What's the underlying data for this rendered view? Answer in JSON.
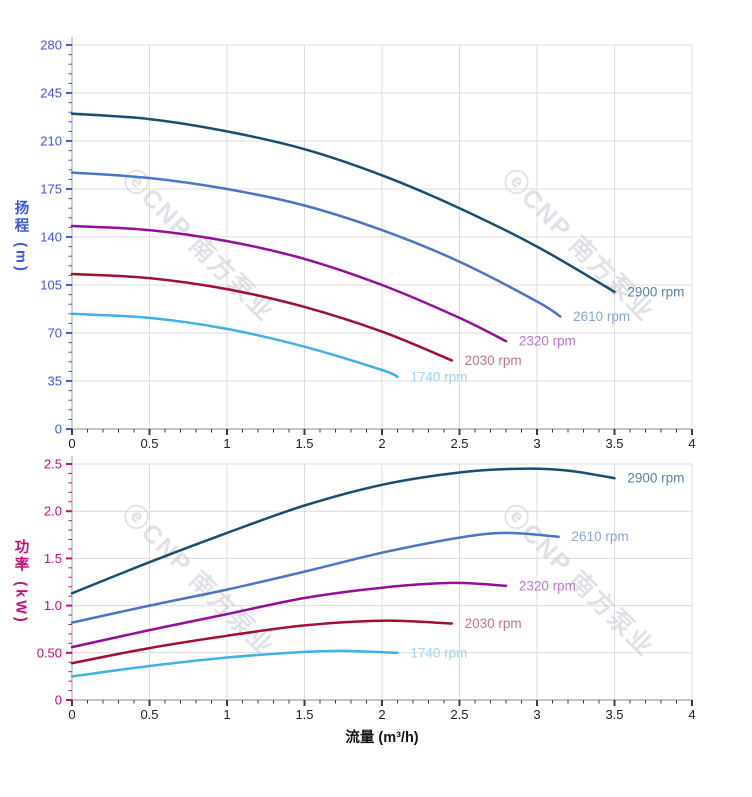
{
  "watermark": {
    "logo_glyph": "ⓔ",
    "text": "CNP 南方泵业",
    "color": "#b9bdc9"
  },
  "chart_data": [
    {
      "type": "line",
      "title": "",
      "xlabel": "",
      "ylabel": "扬程 (m)",
      "xlim": [
        0,
        4
      ],
      "ylim": [
        0,
        280
      ],
      "x_major": 0.5,
      "x_minor": 0.1,
      "y_major": 35,
      "y_minor": 7,
      "grid": true,
      "legend_position": "end-of-curve",
      "axis_color": "#3d56db",
      "x_tick_labels": [
        "0",
        "0.5",
        "1",
        "1.5",
        "2",
        "2.5",
        "3",
        "3.5",
        "4"
      ],
      "y_tick_labels": [
        "0",
        "35",
        "70",
        "105",
        "140",
        "175",
        "210",
        "245",
        "280"
      ],
      "series": [
        {
          "name": "2900 rpm",
          "color": "#174e74",
          "label_color": "#5c80a8",
          "label_at": [
            3.57,
            100
          ],
          "points": [
            [
              0,
              230
            ],
            [
              0.5,
              226
            ],
            [
              1,
              217
            ],
            [
              1.5,
              204
            ],
            [
              2,
              185
            ],
            [
              2.5,
              161
            ],
            [
              3,
              133
            ],
            [
              3.5,
              100
            ]
          ]
        },
        {
          "name": "2610 rpm",
          "color": "#4a76c8",
          "label_color": "#8aa5d8",
          "label_at": [
            3.22,
            82
          ],
          "points": [
            [
              0,
              187
            ],
            [
              0.5,
              183
            ],
            [
              1,
              175
            ],
            [
              1.5,
              163
            ],
            [
              2,
              145
            ],
            [
              2.5,
              122
            ],
            [
              3,
              93
            ],
            [
              3.15,
              82
            ]
          ]
        },
        {
          "name": "2320 rpm",
          "color": "#950d9b",
          "label_color": "#b878c8",
          "label_at": [
            2.87,
            64
          ],
          "points": [
            [
              0,
              148
            ],
            [
              0.5,
              145
            ],
            [
              1,
              137
            ],
            [
              1.5,
              124
            ],
            [
              2,
              105
            ],
            [
              2.5,
              81
            ],
            [
              2.8,
              64
            ]
          ]
        },
        {
          "name": "2030 rpm",
          "color": "#a01031",
          "label_color": "#c47583",
          "label_at": [
            2.52,
            50
          ],
          "points": [
            [
              0,
              113
            ],
            [
              0.5,
              110
            ],
            [
              1,
              102
            ],
            [
              1.5,
              89
            ],
            [
              2,
              71
            ],
            [
              2.45,
              50
            ]
          ]
        },
        {
          "name": "1740 rpm",
          "color": "#3fb1e6",
          "label_color": "#9fd2ef",
          "label_at": [
            2.17,
            38
          ],
          "points": [
            [
              0,
              84
            ],
            [
              0.5,
              81
            ],
            [
              1,
              73
            ],
            [
              1.5,
              60
            ],
            [
              2,
              43
            ],
            [
              2.1,
              38
            ]
          ]
        }
      ]
    },
    {
      "type": "line",
      "title": "",
      "xlabel": "流量 (m³/h)",
      "ylabel": "功率 (kW)",
      "xlim": [
        0,
        4
      ],
      "ylim": [
        0,
        2.5
      ],
      "x_major": 0.5,
      "x_minor": 0.1,
      "y_major": 0.5,
      "y_minor": 0.1,
      "grid": true,
      "legend_position": "end-of-curve",
      "axis_color": "#c40d7c",
      "x_tick_labels": [
        "0",
        "0.5",
        "1",
        "1.5",
        "2",
        "2.5",
        "3",
        "3.5",
        "4"
      ],
      "y_tick_labels": [
        "0",
        "0.50",
        "1.0",
        "1.5",
        "2.0",
        "2.5"
      ],
      "series": [
        {
          "name": "2900 rpm",
          "color": "#174e74",
          "label_color": "#5c80a8",
          "label_at": [
            3.57,
            2.35
          ],
          "points": [
            [
              0,
              1.13
            ],
            [
              0.5,
              1.46
            ],
            [
              1,
              1.77
            ],
            [
              1.5,
              2.06
            ],
            [
              2,
              2.28
            ],
            [
              2.5,
              2.41
            ],
            [
              2.9,
              2.45
            ],
            [
              3.2,
              2.43
            ],
            [
              3.5,
              2.35
            ]
          ]
        },
        {
          "name": "2610 rpm",
          "color": "#4a76c8",
          "label_color": "#8aa5d8",
          "label_at": [
            3.21,
            1.73
          ],
          "points": [
            [
              0,
              0.82
            ],
            [
              0.5,
              1.0
            ],
            [
              1,
              1.17
            ],
            [
              1.5,
              1.36
            ],
            [
              2,
              1.56
            ],
            [
              2.5,
              1.72
            ],
            [
              2.8,
              1.77
            ],
            [
              3.14,
              1.73
            ]
          ]
        },
        {
          "name": "2320 rpm",
          "color": "#950d9b",
          "label_color": "#b878c8",
          "label_at": [
            2.87,
            1.21
          ],
          "points": [
            [
              0,
              0.56
            ],
            [
              0.5,
              0.74
            ],
            [
              1,
              0.91
            ],
            [
              1.5,
              1.08
            ],
            [
              2,
              1.19
            ],
            [
              2.45,
              1.24
            ],
            [
              2.8,
              1.21
            ]
          ]
        },
        {
          "name": "2030 rpm",
          "color": "#a01031",
          "label_color": "#c47583",
          "label_at": [
            2.52,
            0.81
          ],
          "points": [
            [
              0,
              0.39
            ],
            [
              0.5,
              0.55
            ],
            [
              1,
              0.68
            ],
            [
              1.5,
              0.79
            ],
            [
              2,
              0.84
            ],
            [
              2.45,
              0.81
            ]
          ]
        },
        {
          "name": "1740 rpm",
          "color": "#3fb1e6",
          "label_color": "#9fd2ef",
          "label_at": [
            2.17,
            0.5
          ],
          "points": [
            [
              0,
              0.25
            ],
            [
              0.5,
              0.36
            ],
            [
              1,
              0.45
            ],
            [
              1.5,
              0.51
            ],
            [
              1.75,
              0.52
            ],
            [
              2.1,
              0.5
            ]
          ]
        }
      ]
    }
  ]
}
